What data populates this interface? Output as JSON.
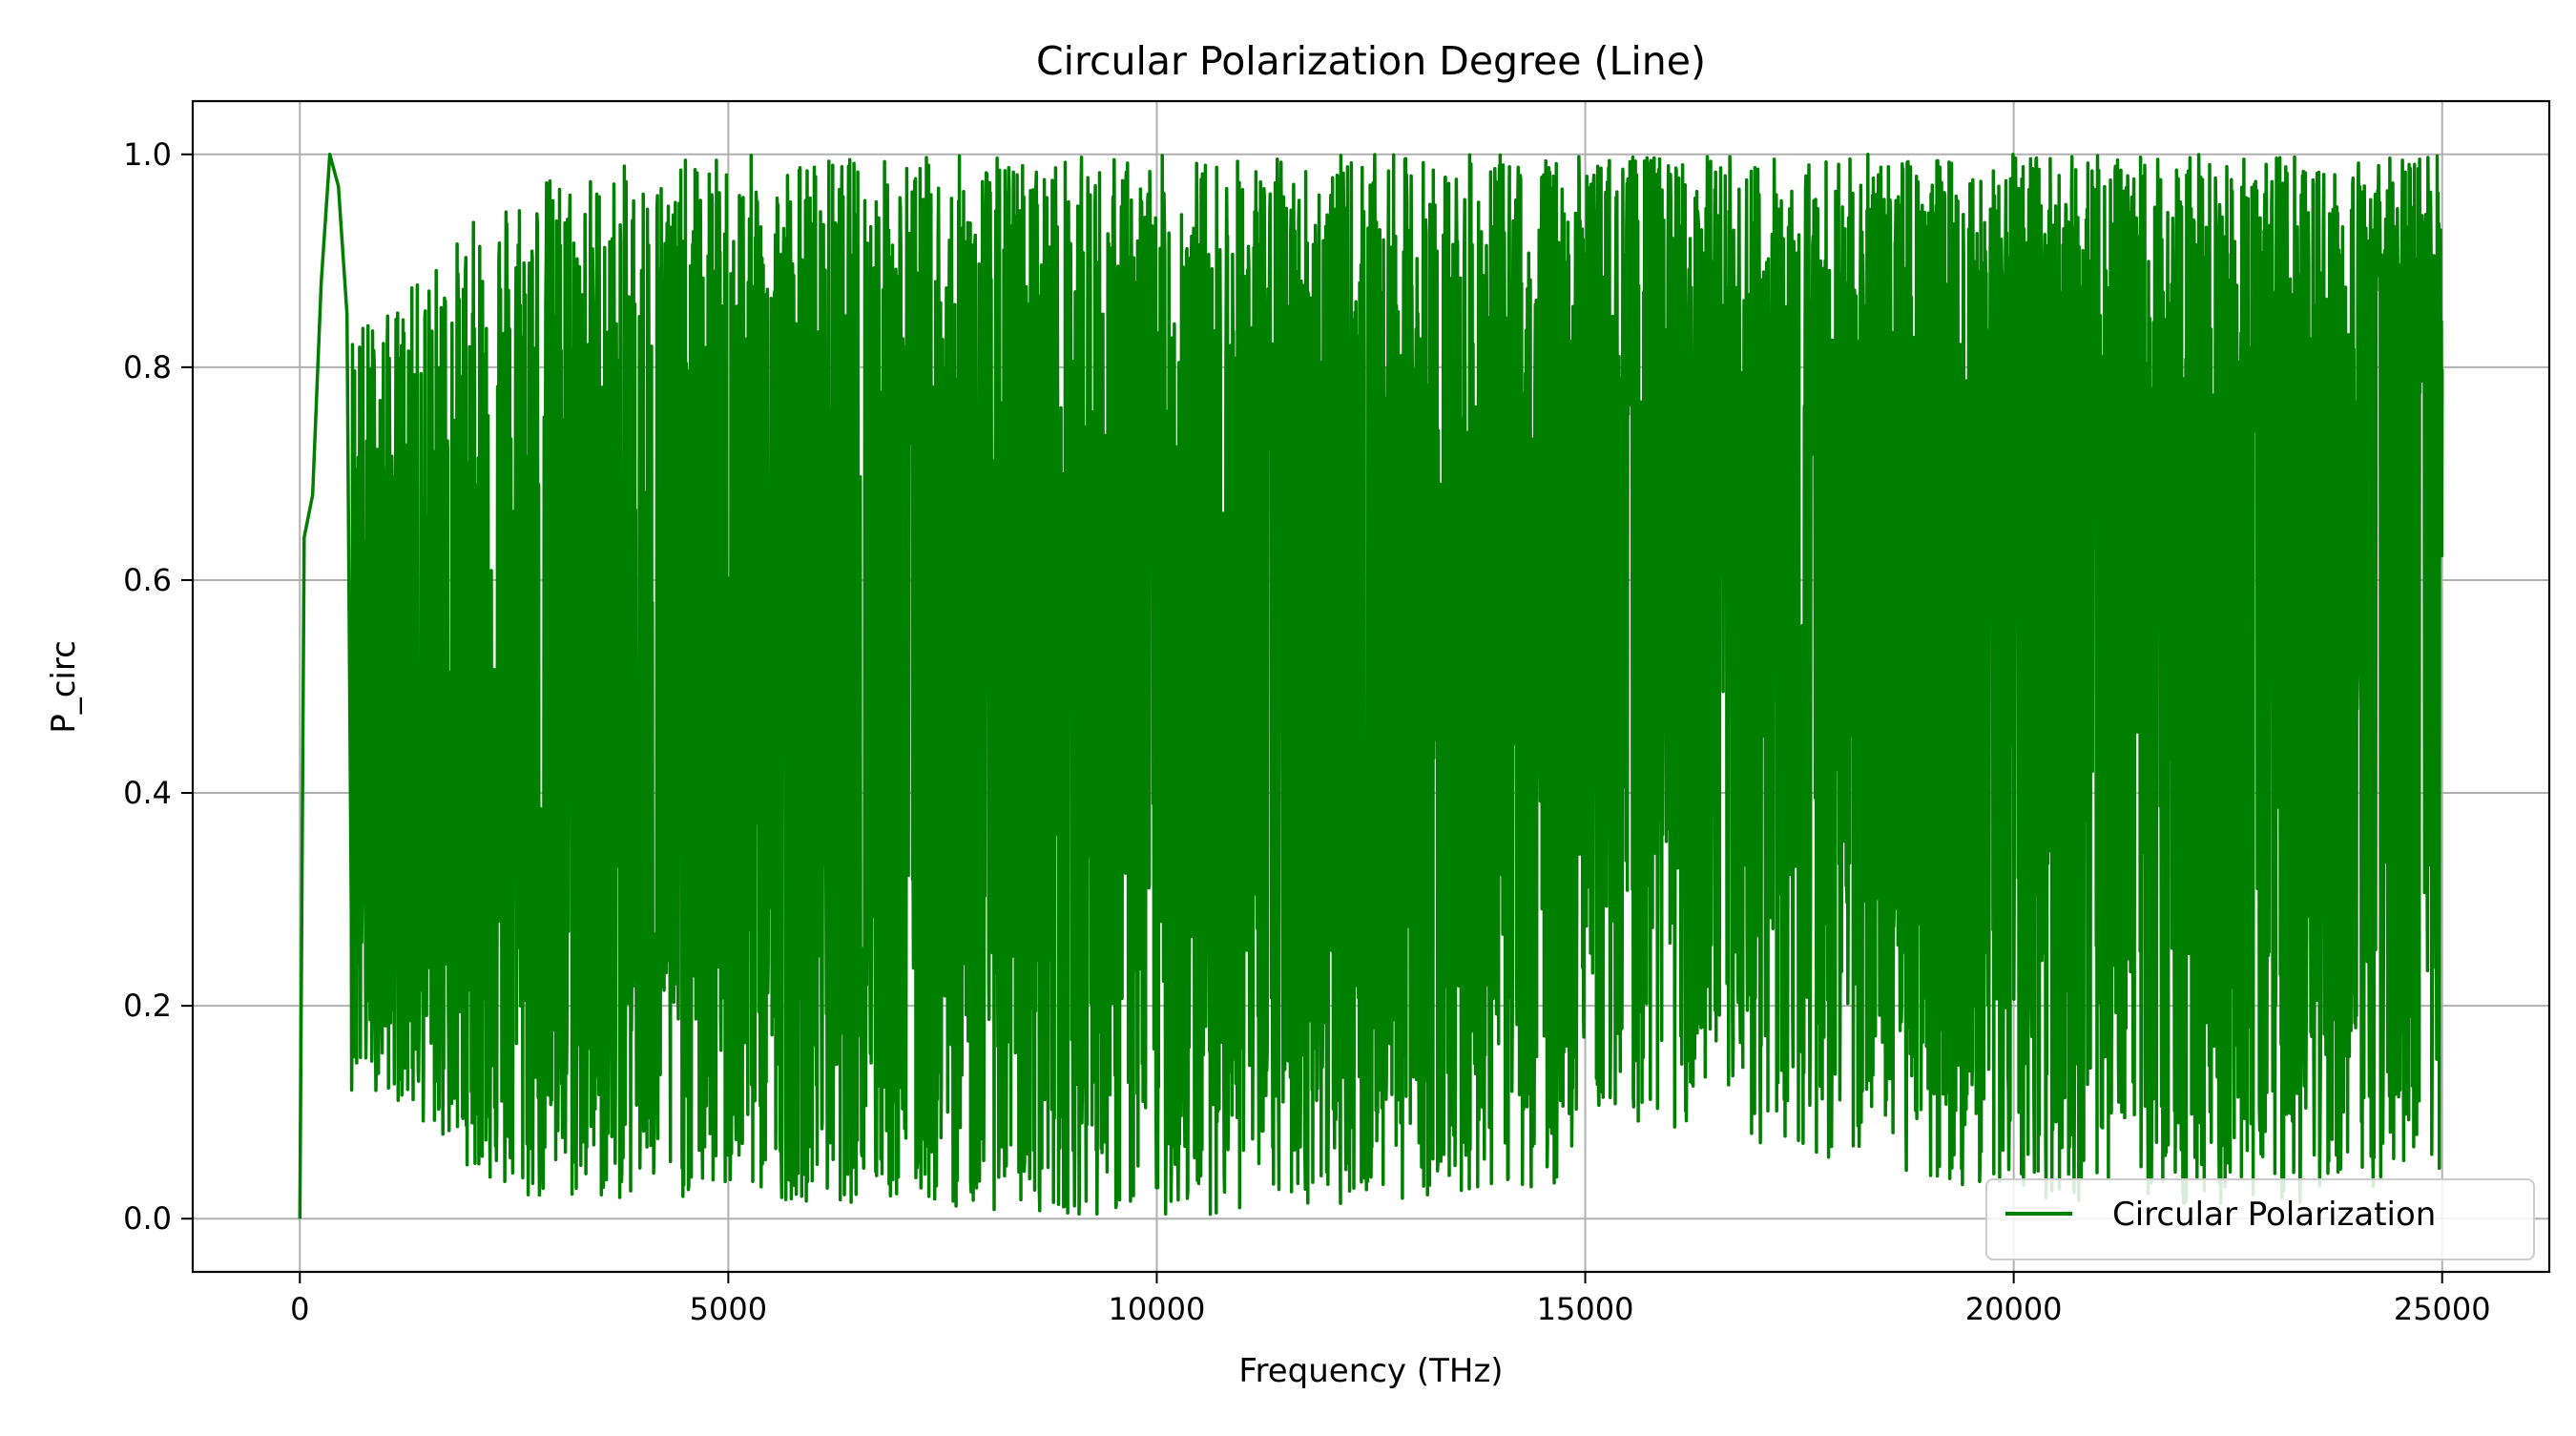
{
  "chart_data": {
    "type": "line",
    "title": "Circular Polarization Degree (Line)",
    "xlabel": "Frequency (THz)",
    "ylabel": "P_circ",
    "xlim": [
      -1250,
      26250
    ],
    "ylim": [
      -0.05,
      1.05
    ],
    "xticks": [
      0,
      5000,
      10000,
      15000,
      20000,
      25000
    ],
    "xtick_labels": [
      "0",
      "5000",
      "10000",
      "15000",
      "20000",
      "25000"
    ],
    "yticks": [
      0.0,
      0.2,
      0.4,
      0.6,
      0.8,
      1.0
    ],
    "ytick_labels": [
      "0.0",
      "0.2",
      "0.4",
      "0.6",
      "0.8",
      "1.0"
    ],
    "grid": true,
    "legend_position": "lower-right",
    "series": [
      {
        "name": "Circular Polarization",
        "color": "#008000",
        "x_range": [
          0,
          25000
        ],
        "description_profile": [
          {
            "x": 0,
            "y": 0.0
          },
          {
            "x": 50,
            "y": 0.64
          },
          {
            "x": 150,
            "y": 0.68
          },
          {
            "x": 250,
            "y": 0.88
          },
          {
            "x": 350,
            "y": 1.0
          },
          {
            "x": 450,
            "y": 0.97
          },
          {
            "x": 550,
            "y": 0.85
          }
        ],
        "envelope": [
          {
            "x": 1000,
            "min": 0.12,
            "max": 0.85
          },
          {
            "x": 2500,
            "min": 0.01,
            "max": 0.98
          },
          {
            "x": 5000,
            "min": 0.02,
            "max": 1.0
          },
          {
            "x": 10000,
            "min": 0.0,
            "max": 1.0
          },
          {
            "x": 14700,
            "min": 0.03,
            "max": 1.0
          },
          {
            "x": 15000,
            "min": 0.1,
            "max": 1.0
          },
          {
            "x": 20000,
            "min": 0.02,
            "max": 1.0
          },
          {
            "x": 25000,
            "min": 0.0,
            "max": 1.0
          }
        ],
        "mean_level": [
          {
            "x": 1000,
            "y": 0.45
          },
          {
            "x": 5000,
            "y": 0.48
          },
          {
            "x": 10000,
            "y": 0.52
          },
          {
            "x": 14700,
            "y": 0.55
          },
          {
            "x": 15000,
            "y": 0.66
          },
          {
            "x": 25000,
            "y": 0.66
          }
        ]
      }
    ]
  }
}
